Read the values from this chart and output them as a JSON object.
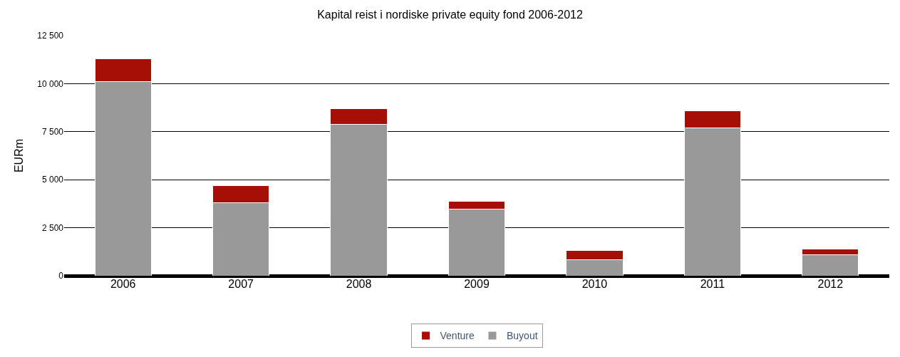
{
  "chart_data": {
    "type": "bar",
    "title": "Kapital reist i nordiske private equity fond 2006-2012",
    "ylabel": "EURm",
    "categories": [
      "2006",
      "2007",
      "2008",
      "2009",
      "2010",
      "2011",
      "2012"
    ],
    "stacked": true,
    "series": [
      {
        "name": "Buyout",
        "color": "#999999",
        "values": [
          10100,
          3820,
          7890,
          3480,
          850,
          7680,
          1090
        ]
      },
      {
        "name": "Venture",
        "color": "#a50f05",
        "values": [
          1200,
          890,
          790,
          410,
          480,
          920,
          310
        ]
      }
    ],
    "ylim": [
      0,
      12500
    ],
    "yticks": [
      0,
      {
        "value": 2500,
        "label": "2 500"
      },
      {
        "value": 5000,
        "label": "5 000"
      },
      {
        "value": 7500,
        "label": "7 500"
      },
      {
        "value": 10000,
        "label": "10 000"
      },
      {
        "value": 12500,
        "label": "12 500"
      }
    ],
    "grid": "y",
    "legend": "bottom"
  }
}
